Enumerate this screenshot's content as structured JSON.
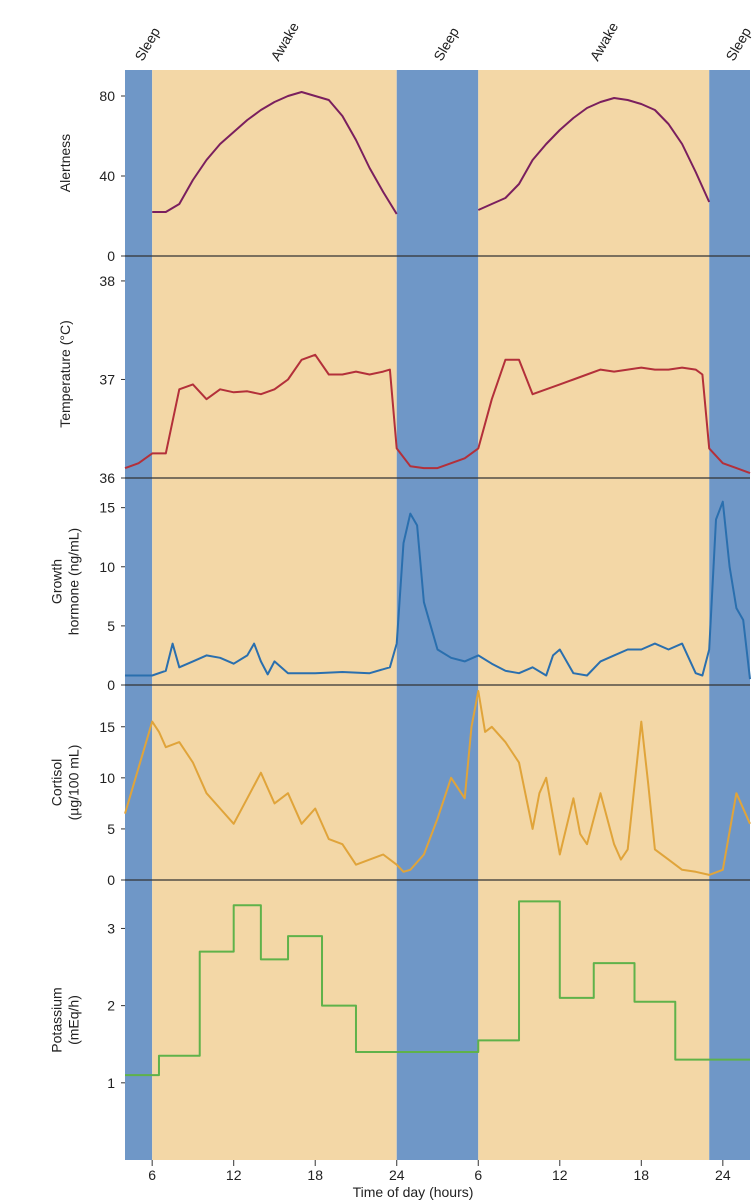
{
  "chart_data": {
    "type": "line",
    "x_axis": {
      "label": "Time of day (hours)",
      "ticks": [
        "6",
        "12",
        "18",
        "24",
        "6",
        "12",
        "18",
        "24"
      ],
      "tick_positions": [
        30,
        36,
        42,
        48,
        54,
        60,
        66,
        72
      ],
      "range": [
        28,
        74
      ],
      "unit_note": "x values are continuous hours across two days (30 = 6 h day 1, 54 = 6 h day 2)"
    },
    "bands": [
      {
        "label": "Sleep",
        "start": 28,
        "end": 30,
        "kind": "sleep"
      },
      {
        "label": "Awake",
        "start": 30,
        "end": 48,
        "kind": "awake"
      },
      {
        "label": "Sleep",
        "start": 48,
        "end": 54,
        "kind": "sleep"
      },
      {
        "label": "Awake",
        "start": 54,
        "end": 71,
        "kind": "awake"
      },
      {
        "label": "Sleep",
        "start": 71,
        "end": 74,
        "kind": "sleep"
      }
    ],
    "colors": {
      "sleep": "#6f97c7",
      "awake": "#f3d7a6"
    },
    "panels": [
      {
        "name": "alertness",
        "ylabel": [
          "Alertness"
        ],
        "yticks": [
          "0",
          "40",
          "80"
        ],
        "ytick_values": [
          0,
          40,
          80
        ],
        "ylim": [
          0,
          90
        ],
        "color": "#7a1f5e",
        "segments": [
          {
            "x": [
              30,
              31,
              32,
              33,
              34,
              35,
              36,
              37,
              38,
              39,
              40,
              41,
              42,
              43,
              44,
              45,
              46,
              47,
              48
            ],
            "y": [
              22,
              22,
              26,
              38,
              48,
              56,
              62,
              68,
              73,
              77,
              80,
              82,
              80,
              78,
              70,
              58,
              44,
              32,
              21
            ]
          },
          {
            "x": [
              54,
              55,
              56,
              57,
              58,
              59,
              60,
              61,
              62,
              63,
              64,
              65,
              66,
              67,
              68,
              69,
              70,
              71
            ],
            "y": [
              23,
              26,
              29,
              36,
              48,
              56,
              63,
              69,
              74,
              77,
              79,
              78,
              76,
              73,
              66,
              56,
              42,
              27
            ]
          }
        ]
      },
      {
        "name": "temperature",
        "ylabel": [
          "Temperature (°C)"
        ],
        "yticks": [
          "36",
          "37",
          "38"
        ],
        "ytick_values": [
          36,
          37,
          38
        ],
        "ylim": [
          36,
          38.05
        ],
        "color": "#b3303a",
        "segments": [
          {
            "x": [
              28,
              29,
              30,
              31,
              32,
              33,
              34,
              35,
              36,
              37,
              38,
              39,
              40,
              41,
              42,
              43,
              44,
              45,
              46,
              47,
              47.5,
              48,
              49,
              50,
              51,
              52,
              53,
              54,
              55,
              56,
              57,
              58,
              59,
              60,
              61,
              62,
              63,
              64,
              65,
              66,
              67,
              68,
              69,
              70,
              70.5,
              71,
              72,
              73,
              74
            ],
            "y": [
              36.1,
              36.15,
              36.25,
              36.25,
              36.9,
              36.95,
              36.8,
              36.9,
              36.87,
              36.88,
              36.85,
              36.9,
              37.0,
              37.2,
              37.25,
              37.05,
              37.05,
              37.08,
              37.05,
              37.08,
              37.1,
              36.3,
              36.12,
              36.1,
              36.1,
              36.15,
              36.2,
              36.3,
              36.8,
              37.2,
              37.2,
              36.85,
              36.9,
              36.95,
              37.0,
              37.05,
              37.1,
              37.08,
              37.1,
              37.12,
              37.1,
              37.1,
              37.12,
              37.1,
              37.05,
              36.3,
              36.15,
              36.1,
              36.05
            ]
          }
        ]
      },
      {
        "name": "growth-hormone",
        "ylabel": [
          "Growth",
          "hormone (ng/mL)"
        ],
        "yticks": [
          "0",
          "5",
          "10",
          "15"
        ],
        "ytick_values": [
          0,
          5,
          10,
          15
        ],
        "ylim": [
          0,
          17
        ],
        "color": "#2a6fae",
        "segments": [
          {
            "x": [
              28,
              30,
              31,
              31.5,
              32,
              33,
              34,
              35,
              36,
              37,
              37.5,
              38,
              38.5,
              39,
              40,
              42,
              44,
              46,
              47.5,
              48,
              48.5,
              49,
              49.5,
              50,
              51,
              52,
              53,
              54,
              55,
              56,
              57,
              58,
              59,
              59.5,
              60,
              61,
              62,
              63,
              64,
              65,
              66,
              67,
              68,
              69,
              70,
              70.5,
              71,
              71.5,
              72,
              72.5,
              73,
              73.5,
              74
            ],
            "y": [
              0.8,
              0.8,
              1.2,
              3.5,
              1.5,
              2.0,
              2.5,
              2.3,
              1.8,
              2.5,
              3.5,
              2.0,
              0.9,
              2.0,
              1.0,
              1.0,
              1.1,
              1.0,
              1.5,
              3.5,
              12.0,
              14.5,
              13.5,
              7.0,
              3.0,
              2.3,
              2.0,
              2.5,
              1.8,
              1.2,
              1.0,
              1.5,
              0.8,
              2.5,
              3.0,
              1.0,
              0.8,
              2.0,
              2.5,
              3.0,
              3.0,
              3.5,
              3.0,
              3.5,
              1.0,
              0.8,
              3.0,
              14.0,
              15.5,
              10.0,
              6.5,
              5.5,
              0.5
            ]
          }
        ]
      },
      {
        "name": "cortisol",
        "ylabel": [
          "Cortisol",
          "(µg/100 mL)"
        ],
        "yticks": [
          "0",
          "5",
          "10",
          "15"
        ],
        "ytick_values": [
          0,
          5,
          10,
          15
        ],
        "ylim": [
          0,
          18.5
        ],
        "color": "#e0a43a",
        "segments": [
          {
            "x": [
              28,
              29,
              30,
              30.5,
              31,
              32,
              33,
              34,
              35,
              36,
              37,
              38,
              38.5,
              39,
              40,
              41,
              42,
              43,
              44,
              45,
              46,
              47,
              48,
              48.5,
              49,
              50,
              51,
              52,
              53,
              53.5,
              54,
              54.5,
              55,
              56,
              57,
              58,
              58.5,
              59,
              60,
              61,
              61.5,
              62,
              63,
              64,
              64.5,
              65,
              66,
              66.5,
              67,
              68,
              69,
              70,
              71,
              72,
              73,
              74
            ],
            "y": [
              6.5,
              11.0,
              15.5,
              14.5,
              13.0,
              13.5,
              11.5,
              8.5,
              7.0,
              5.5,
              8.0,
              10.5,
              9.0,
              7.5,
              8.5,
              5.5,
              7.0,
              4.0,
              3.5,
              1.5,
              2.0,
              2.5,
              1.5,
              0.8,
              1.0,
              2.5,
              6.0,
              10.0,
              8.0,
              15.0,
              18.5,
              14.5,
              15.0,
              13.5,
              11.5,
              5.0,
              8.5,
              10.0,
              2.5,
              8.0,
              4.5,
              3.5,
              8.5,
              3.5,
              2.0,
              3.0,
              15.5,
              9.5,
              3.0,
              2.0,
              1.0,
              0.8,
              0.5,
              1.0,
              8.5,
              5.5
            ]
          }
        ]
      },
      {
        "name": "potassium",
        "ylabel": [
          "Potassium",
          "(mEq/h)"
        ],
        "yticks": [
          "1",
          "2",
          "3"
        ],
        "ytick_values": [
          1,
          2,
          3
        ],
        "ylim": [
          0,
          3.55
        ],
        "color": "#5fb24a",
        "step": true,
        "segments": [
          {
            "x": [
              28,
              30.5,
              33.5,
              36,
              38,
              40,
              42.5,
              45,
              47.5,
              54,
              57,
              60,
              62.5,
              65.5,
              68.5,
              71,
              74
            ],
            "y": [
              1.1,
              1.35,
              2.7,
              3.3,
              2.6,
              2.9,
              2.0,
              1.4,
              1.4,
              1.55,
              3.35,
              2.1,
              2.55,
              2.05,
              1.3,
              1.3,
              1.3
            ]
          }
        ]
      }
    ]
  }
}
